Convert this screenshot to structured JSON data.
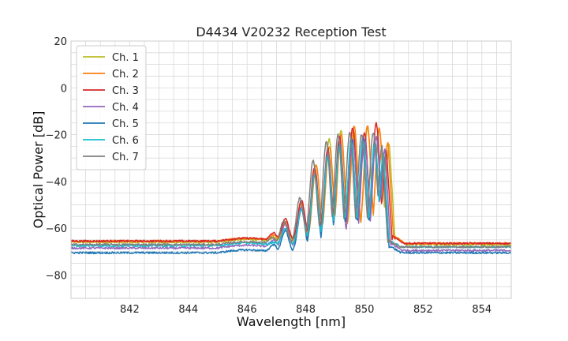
{
  "chart_data": {
    "type": "line",
    "title": "D4434 V20232 Reception Test",
    "xlabel": "Wavelength [nm]",
    "ylabel": "Optical Power [dB]",
    "xlim": [
      840,
      855
    ],
    "ylim": [
      -90,
      20
    ],
    "xticks": [
      842,
      844,
      846,
      848,
      850,
      852,
      854
    ],
    "yticks": [
      20,
      0,
      -20,
      -40,
      -60,
      -80
    ],
    "xtick_labels": [
      "842",
      "844",
      "846",
      "848",
      "850",
      "852",
      "854"
    ],
    "ytick_labels": [
      "20",
      "0",
      "−20",
      "−40",
      "−60",
      "−80"
    ],
    "x_minor_step": 0.5,
    "y_minor_step": 5,
    "grid": true,
    "legend_position": "top-left",
    "series": [
      {
        "name": "Ch. 1",
        "color": "#bcbd22",
        "baseline": -66,
        "tail": -67,
        "peaks": [
          [
            846.9,
            -64
          ],
          [
            847.3,
            -58
          ],
          [
            847.85,
            -50
          ],
          [
            848.35,
            -33
          ],
          [
            848.8,
            -22
          ],
          [
            849.2,
            -18
          ],
          [
            849.65,
            -19
          ],
          [
            850.1,
            -17
          ],
          [
            850.5,
            -18
          ],
          [
            850.85,
            -24
          ]
        ]
      },
      {
        "name": "Ch. 2",
        "color": "#ff7f0e",
        "baseline": -65.5,
        "tail": -66.5,
        "peaks": [
          [
            846.9,
            -63
          ],
          [
            847.3,
            -57
          ],
          [
            847.85,
            -49
          ],
          [
            848.35,
            -33
          ],
          [
            848.8,
            -25
          ],
          [
            849.2,
            -20
          ],
          [
            849.65,
            -16
          ],
          [
            850.1,
            -16
          ],
          [
            850.5,
            -17
          ],
          [
            850.8,
            -23
          ]
        ]
      },
      {
        "name": "Ch. 3",
        "color": "#d62728",
        "baseline": -65.5,
        "tail": -66.5,
        "peaks": [
          [
            846.9,
            -62
          ],
          [
            847.3,
            -56
          ],
          [
            847.85,
            -48
          ],
          [
            848.3,
            -34
          ],
          [
            848.75,
            -26
          ],
          [
            849.15,
            -21
          ],
          [
            849.6,
            -17
          ],
          [
            850.0,
            -19
          ],
          [
            850.4,
            -15
          ],
          [
            850.75,
            -27
          ]
        ]
      },
      {
        "name": "Ch. 4",
        "color": "#9467bd",
        "baseline": -68.5,
        "tail": -69.5,
        "peaks": [
          [
            846.9,
            -65
          ],
          [
            847.3,
            -58
          ],
          [
            847.85,
            -51
          ],
          [
            848.3,
            -37
          ],
          [
            848.75,
            -28
          ],
          [
            849.15,
            -24
          ],
          [
            849.6,
            -22
          ],
          [
            850.0,
            -22
          ],
          [
            850.4,
            -21
          ],
          [
            850.7,
            -26
          ]
        ]
      },
      {
        "name": "Ch. 5",
        "color": "#1f77b4",
        "baseline": -70.5,
        "tail": -70.5,
        "peaks": [
          [
            846.9,
            -67
          ],
          [
            847.3,
            -61
          ],
          [
            847.85,
            -52
          ],
          [
            848.3,
            -37
          ],
          [
            848.75,
            -29
          ],
          [
            849.15,
            -24
          ],
          [
            849.55,
            -22
          ],
          [
            849.95,
            -21
          ],
          [
            850.35,
            -23
          ],
          [
            850.65,
            -30
          ]
        ]
      },
      {
        "name": "Ch. 6",
        "color": "#17becf",
        "baseline": -67.5,
        "tail": -68,
        "peaks": [
          [
            846.9,
            -66
          ],
          [
            847.3,
            -60
          ],
          [
            847.85,
            -52
          ],
          [
            848.3,
            -37
          ],
          [
            848.75,
            -29
          ],
          [
            849.15,
            -25
          ],
          [
            849.55,
            -23
          ],
          [
            849.95,
            -23
          ],
          [
            850.35,
            -24
          ],
          [
            850.65,
            -28
          ]
        ]
      },
      {
        "name": "Ch. 7",
        "color": "#7f7f7f",
        "baseline": -67,
        "tail": -68,
        "peaks": [
          [
            846.85,
            -64
          ],
          [
            847.25,
            -57
          ],
          [
            847.8,
            -47
          ],
          [
            848.25,
            -31
          ],
          [
            848.7,
            -23
          ],
          [
            849.1,
            -20
          ],
          [
            849.5,
            -19
          ],
          [
            849.9,
            -20
          ],
          [
            850.3,
            -19
          ],
          [
            850.6,
            -25
          ]
        ]
      }
    ]
  }
}
